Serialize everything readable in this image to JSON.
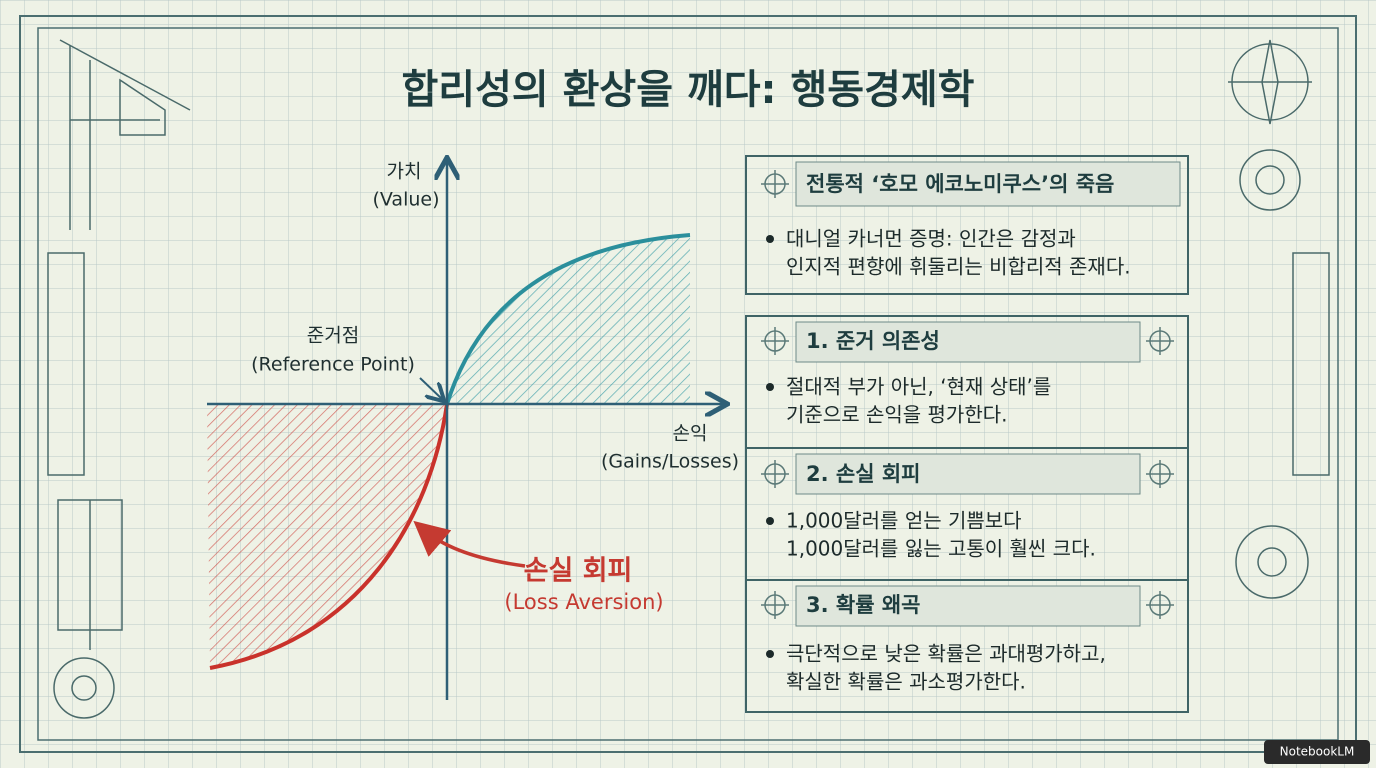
{
  "title": "합리성의 환상을 깨다: 행동경제학",
  "graph": {
    "y_axis": {
      "label": "가치",
      "sublabel": "(Value)"
    },
    "x_axis": {
      "label": "손익",
      "sublabel": "(Gains/Losses)"
    },
    "reference_point": {
      "label": "준거점",
      "sublabel": "(Reference Point)"
    },
    "loss_aversion": {
      "label": "손실 회피",
      "sublabel": "(Loss Aversion)"
    }
  },
  "panel": {
    "header": {
      "title": "전통적 ‘호모 에코노미쿠스’의 죽음",
      "lines": [
        "대니얼 카너먼 증명: 인간은 감정과",
        "인지적 편향에 휘둘리는 비합리적 존재다."
      ]
    },
    "sections": [
      {
        "title": "1. 준거 의존성",
        "lines": [
          "절대적 부가 아닌, ‘현재 상태’를",
          "기준으로 손익을 평가한다."
        ]
      },
      {
        "title": "2. 손실 회피",
        "lines": [
          "1,000달러를 얻는 기쁨보다",
          "1,000달러를 잃는 고통이 훨씬 크다."
        ]
      },
      {
        "title": "3. 확률 왜곡",
        "lines": [
          "극단적으로 낮은 확률은 과대평가하고,",
          "확실한 확률은 과소평가한다."
        ]
      }
    ]
  },
  "watermark": "NotebookLM"
}
